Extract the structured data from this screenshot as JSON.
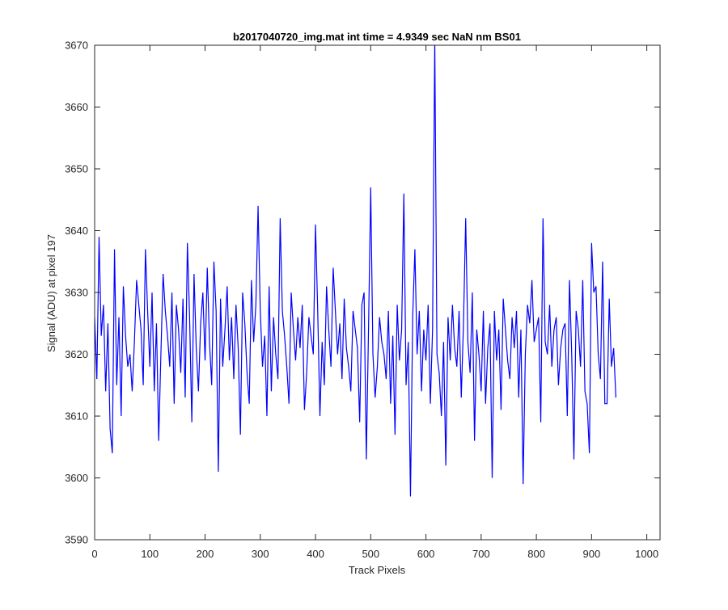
{
  "chart_data": {
    "type": "line",
    "title": "b2017040720_img.mat int time = 4.9349 sec  NaN nm BS01",
    "xlabel": "Track Pixels",
    "ylabel": "Signal (ADU) at pixel 197",
    "xlim": [
      0,
      1024
    ],
    "ylim": [
      3590,
      3670
    ],
    "xticks": [
      0,
      100,
      200,
      300,
      400,
      500,
      600,
      700,
      800,
      900,
      1000
    ],
    "yticks": [
      3590,
      3600,
      3610,
      3620,
      3630,
      3640,
      3650,
      3660,
      3670
    ],
    "xtick_labels": [
      "0",
      "100",
      "200",
      "300",
      "400",
      "500",
      "600",
      "700",
      "800",
      "900",
      "1000"
    ],
    "ytick_labels": [
      "3590",
      "3600",
      "3610",
      "3620",
      "3630",
      "3640",
      "3650",
      "3660",
      "3670"
    ],
    "grid": false,
    "line_color": "#0000ff",
    "series": [
      {
        "x_start": 0,
        "x_step": 4,
        "values": [
          3626,
          3616,
          3639,
          3623,
          3628,
          3614,
          3625,
          3608,
          3604,
          3637,
          3615,
          3626,
          3610,
          3631,
          3623,
          3618,
          3620,
          3614,
          3622,
          3632,
          3628,
          3624,
          3615,
          3637,
          3627,
          3618,
          3630,
          3614,
          3625,
          3606,
          3620,
          3633,
          3627,
          3623,
          3618,
          3630,
          3612,
          3628,
          3624,
          3617,
          3629,
          3613,
          3638,
          3626,
          3609,
          3633,
          3621,
          3614,
          3625,
          3630,
          3619,
          3634,
          3622,
          3615,
          3635,
          3627,
          3601,
          3629,
          3618,
          3624,
          3631,
          3619,
          3626,
          3616,
          3628,
          3621,
          3607,
          3630,
          3625,
          3617,
          3612,
          3632,
          3622,
          3628,
          3644,
          3627,
          3618,
          3623,
          3610,
          3631,
          3614,
          3626,
          3620,
          3616,
          3642,
          3627,
          3623,
          3618,
          3612,
          3630,
          3624,
          3619,
          3626,
          3621,
          3628,
          3611,
          3617,
          3626,
          3623,
          3620,
          3641,
          3627,
          3610,
          3622,
          3615,
          3631,
          3624,
          3618,
          3634,
          3627,
          3620,
          3625,
          3616,
          3629,
          3621,
          3618,
          3614,
          3627,
          3624,
          3621,
          3609,
          3628,
          3630,
          3603,
          3624,
          3647,
          3620,
          3613,
          3618,
          3626,
          3622,
          3620,
          3616,
          3627,
          3612,
          3623,
          3607,
          3628,
          3619,
          3624,
          3646,
          3615,
          3622,
          3597,
          3626,
          3637,
          3620,
          3627,
          3614,
          3624,
          3619,
          3628,
          3612,
          3624,
          3671,
          3620,
          3617,
          3610,
          3622,
          3602,
          3626,
          3619,
          3628,
          3621,
          3618,
          3627,
          3613,
          3625,
          3642,
          3622,
          3617,
          3630,
          3606,
          3624,
          3620,
          3614,
          3627,
          3612,
          3621,
          3625,
          3600,
          3627,
          3619,
          3624,
          3611,
          3629,
          3624,
          3619,
          3616,
          3626,
          3621,
          3627,
          3613,
          3624,
          3599,
          3620,
          3628,
          3625,
          3632,
          3622,
          3624,
          3626,
          3609,
          3642,
          3622,
          3620,
          3628,
          3618,
          3624,
          3626,
          3615,
          3621,
          3624,
          3625,
          3610,
          3632,
          3620,
          3603,
          3627,
          3624,
          3618,
          3632,
          3614,
          3612,
          3604,
          3638,
          3630,
          3631,
          3620,
          3616,
          3635,
          3612,
          3612,
          3629,
          3618,
          3621,
          3613
        ]
      }
    ]
  }
}
